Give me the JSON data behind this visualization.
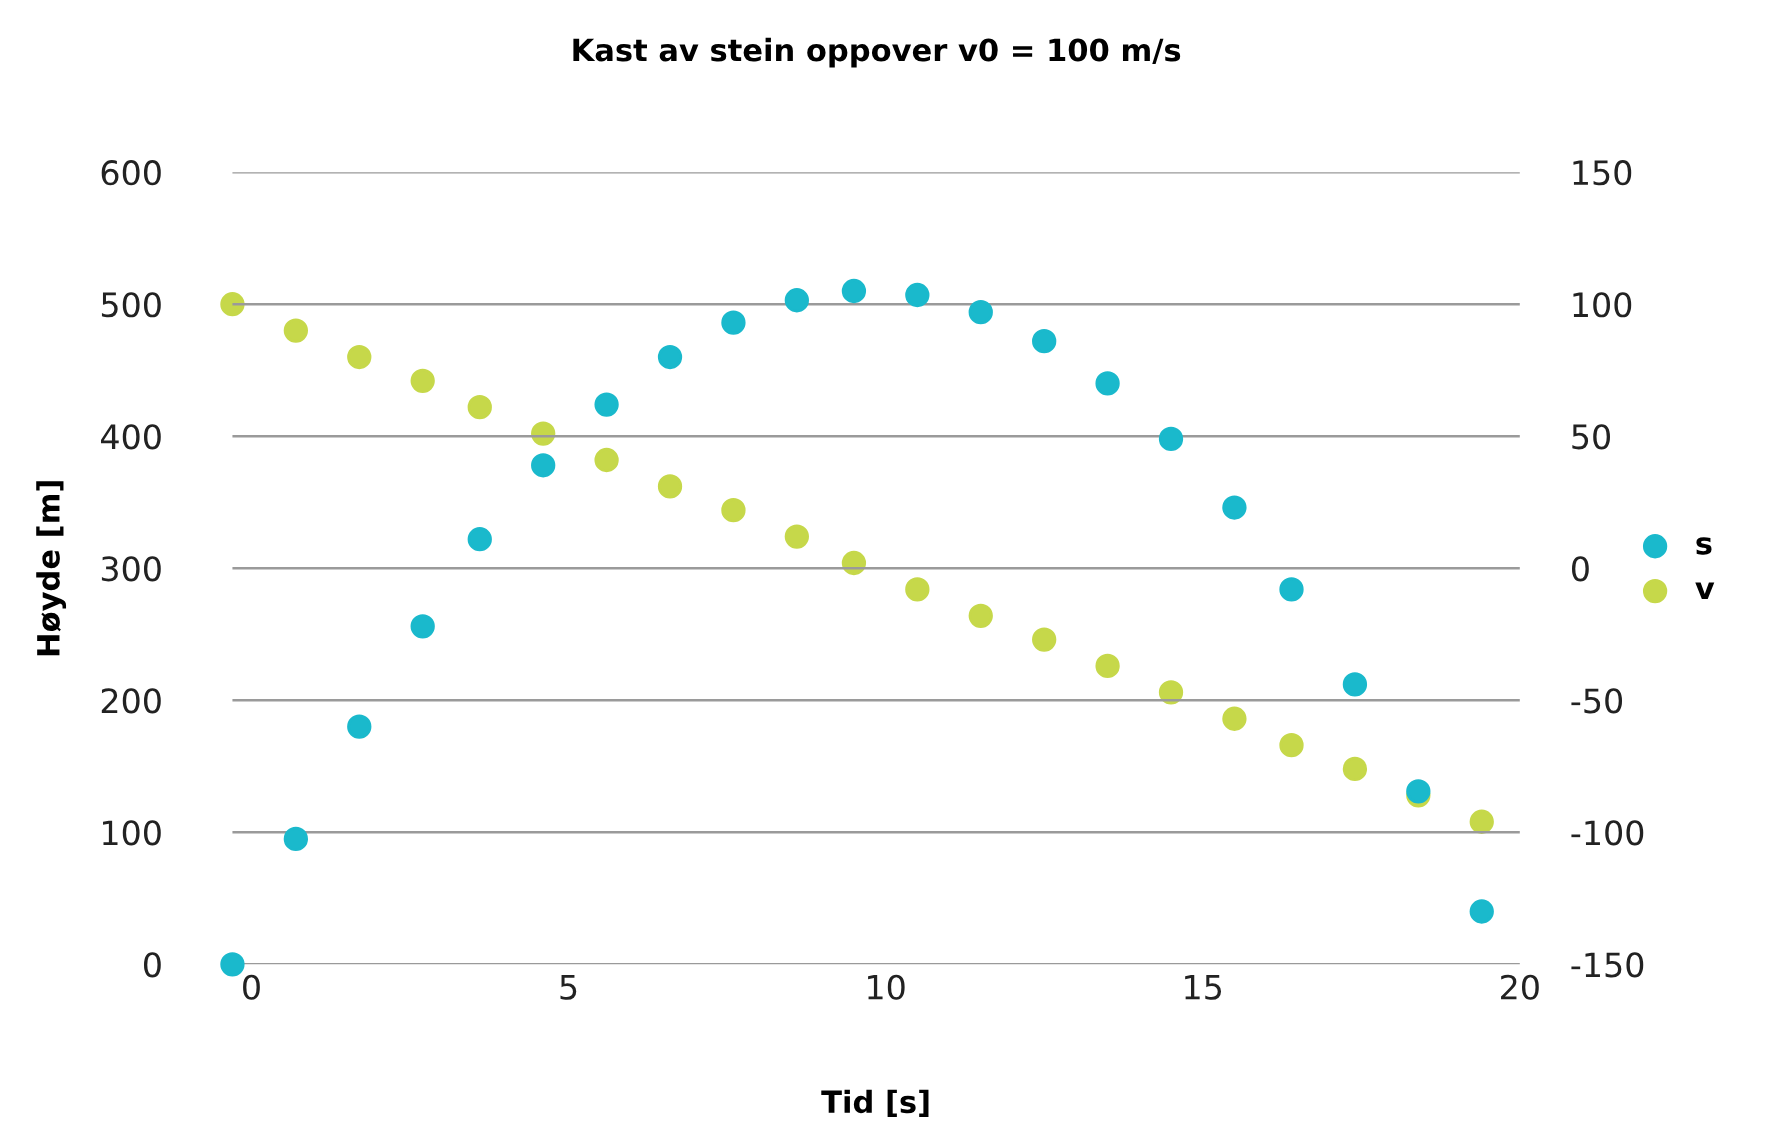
{
  "chart_data": {
    "type": "scatter",
    "title": "Kast av stein oppover v0 = 100 m/s",
    "xlabel": "Tid [s]",
    "ylabel": "Høyde [m]",
    "x": [
      -0.3,
      0.7,
      1.7,
      2.7,
      3.6,
      4.6,
      5.6,
      6.6,
      7.6,
      8.6,
      9.5,
      10.5,
      11.5,
      12.5,
      13.5,
      14.5,
      15.5,
      16.4,
      17.4,
      18.4,
      19.4
    ],
    "series": [
      {
        "name": "s",
        "color": "#1ab9cc",
        "values": [
          0,
          95,
          180,
          256,
          322,
          378,
          424,
          460,
          486,
          503,
          510,
          507,
          494,
          472,
          440,
          398,
          346,
          284,
          212,
          131,
          40
        ]
      },
      {
        "name": "v",
        "color": "#c6d84a",
        "axis": "y2",
        "values": [
          100,
          90,
          80,
          71,
          61,
          51,
          41,
          31,
          22,
          12,
          2,
          -8,
          -18,
          -27,
          -37,
          -47,
          -57,
          -67,
          -76,
          -86,
          -96
        ]
      }
    ],
    "xlim": [
      -0.3,
      20
    ],
    "xticks": [
      0,
      5,
      10,
      15,
      20
    ],
    "ylim": [
      0,
      600
    ],
    "yticks": [
      0,
      100,
      200,
      300,
      400,
      500,
      600
    ],
    "y2lim": [
      -150,
      150
    ],
    "y2ticks": [
      -150,
      -100,
      -50,
      0,
      50,
      100,
      150
    ],
    "grid": "y",
    "legend": "right",
    "marker": "circle"
  }
}
